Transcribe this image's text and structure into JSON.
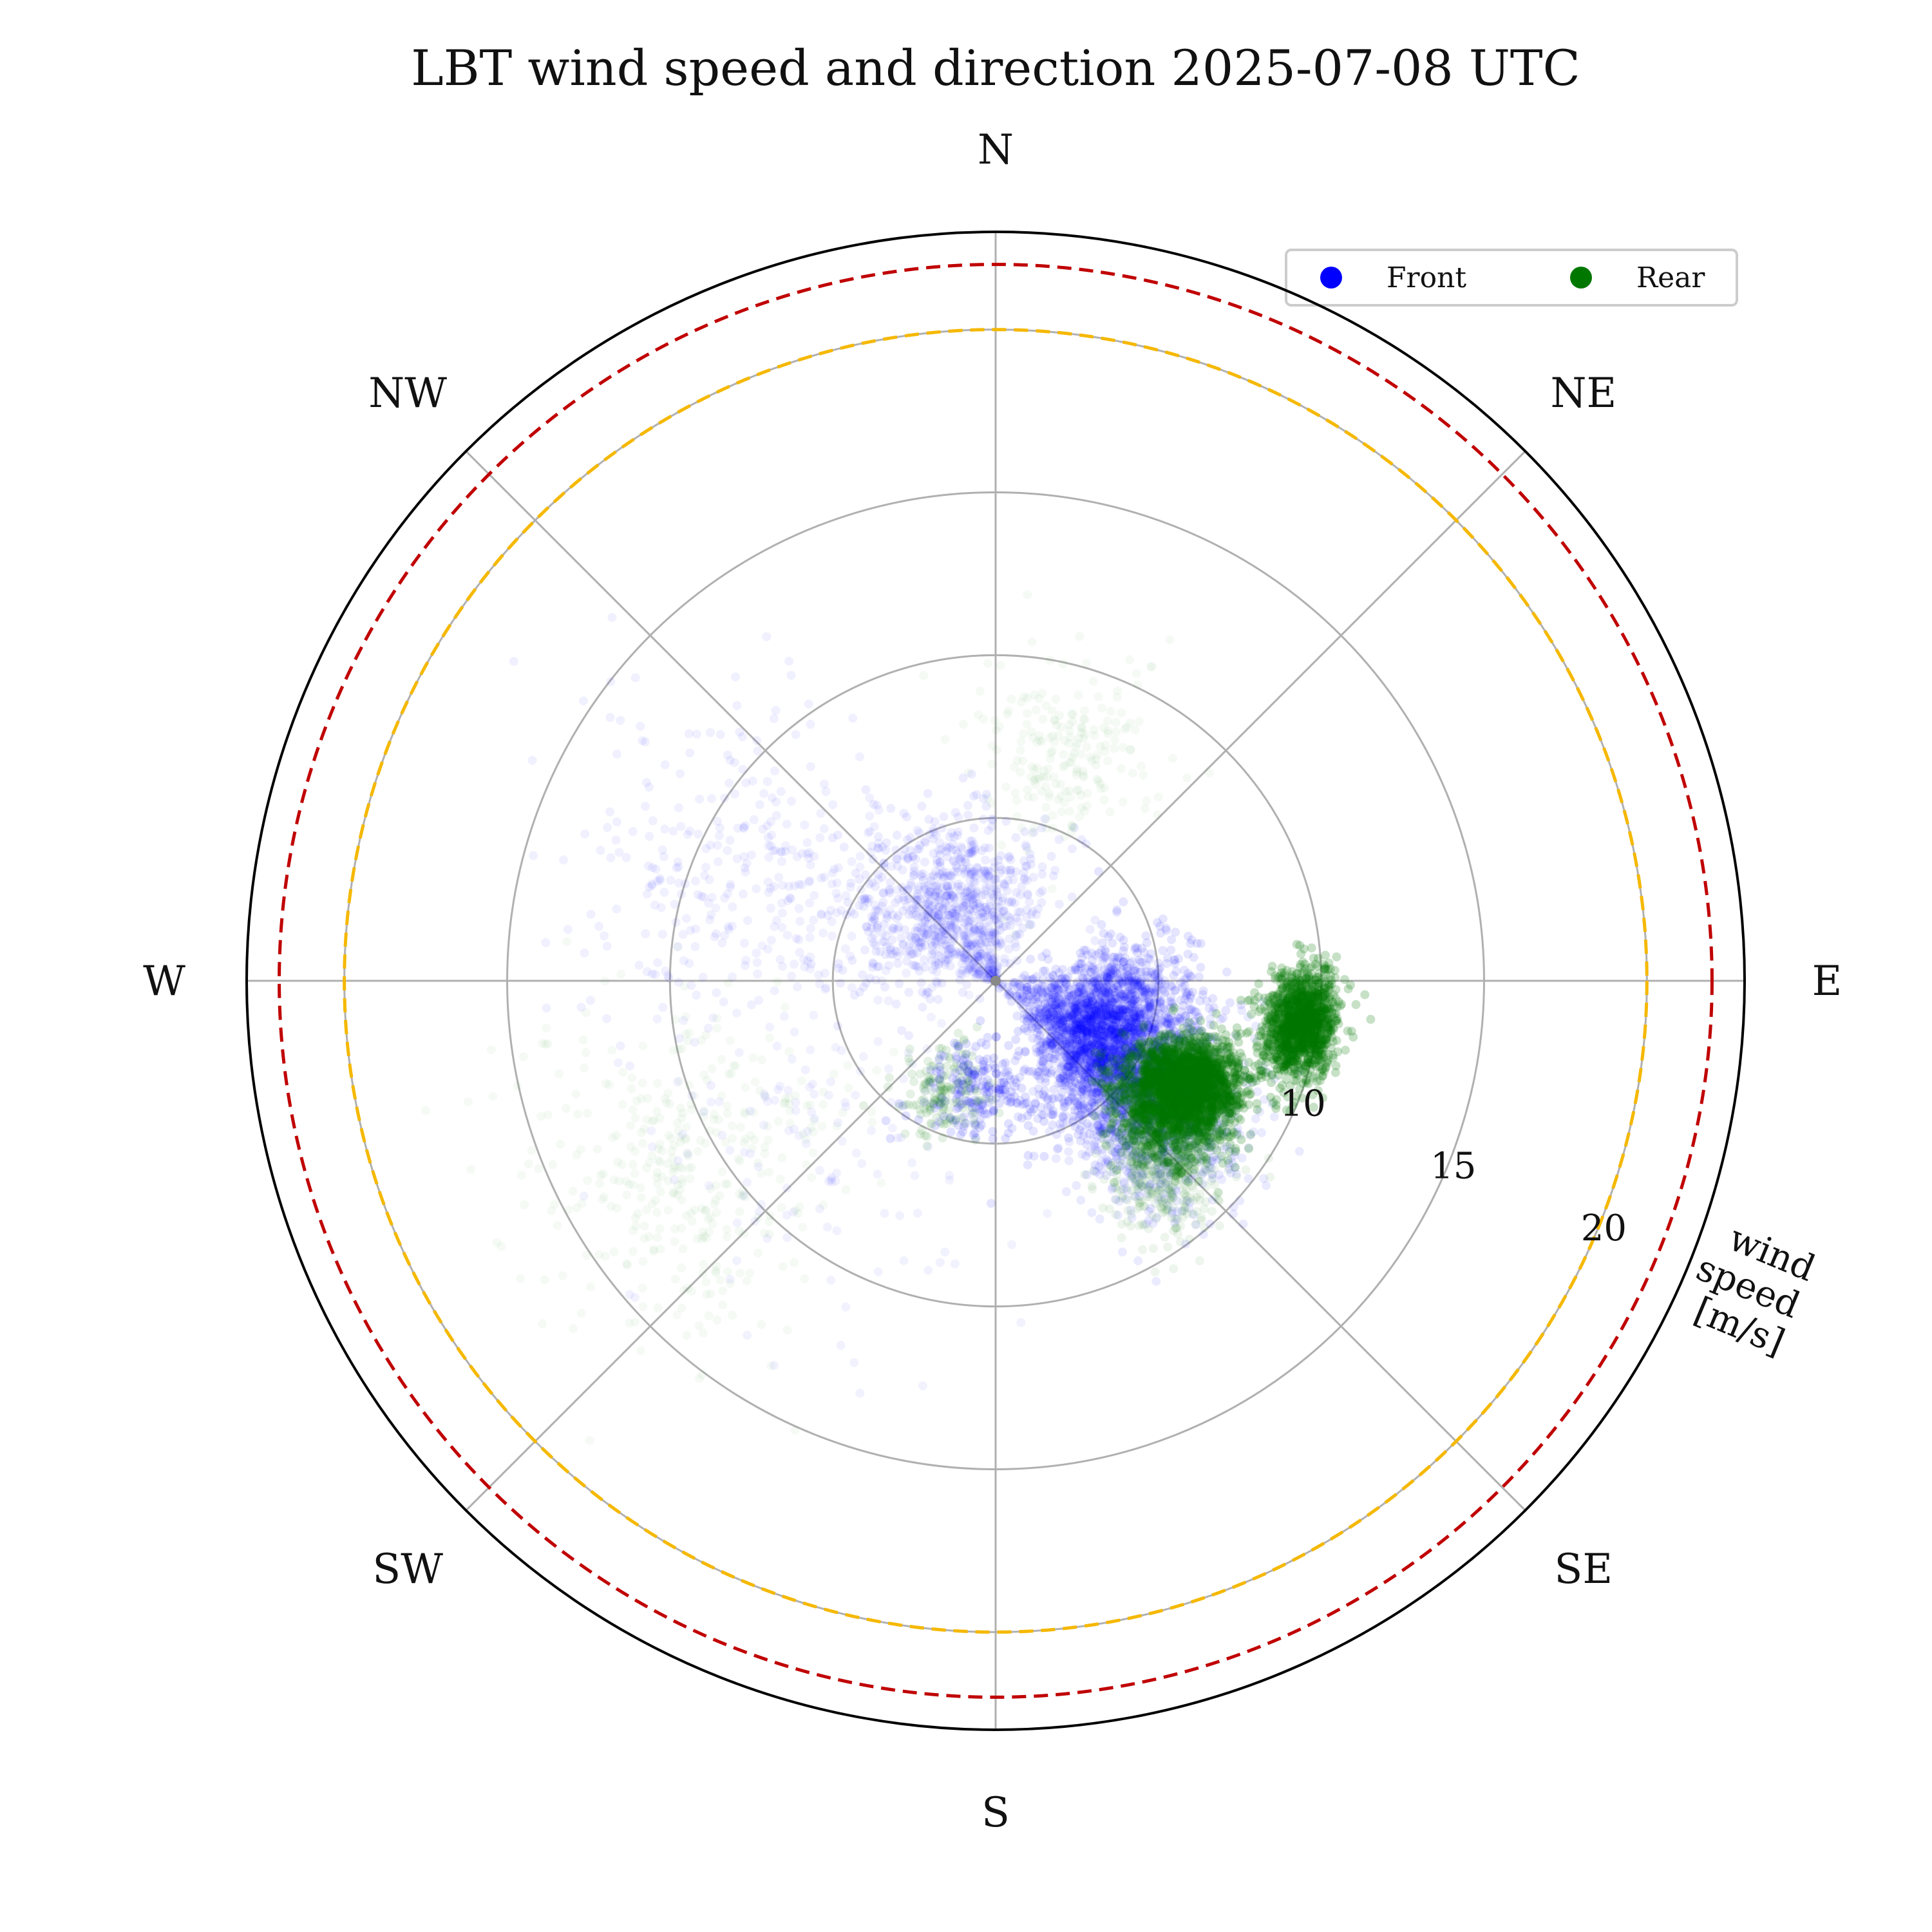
{
  "chart_data": {
    "type": "scatter",
    "subtype": "polar",
    "title": "LBT wind speed and direction 2025-07-08 UTC",
    "axis_label": "wind\nspeed\n[m/s]",
    "axis_label_lines": [
      "wind",
      "speed",
      "[m/s]"
    ],
    "direction_labels": [
      "N",
      "NE",
      "E",
      "SE",
      "S",
      "SW",
      "W",
      "NW"
    ],
    "direction_angles_deg": [
      0,
      45,
      90,
      135,
      180,
      225,
      270,
      315
    ],
    "radial_ticks": [
      5,
      10,
      15,
      20
    ],
    "radial_tick_labels": [
      "",
      "10",
      "15",
      "20"
    ],
    "radial_tick_label_direction_deg": 112.5,
    "rlim": [
      0,
      23
    ],
    "theta_zero": "N",
    "theta_direction": "clockwise",
    "grid": true,
    "reference_circles": [
      {
        "radius": 20,
        "color": "#f5b800",
        "style": "dashed"
      },
      {
        "radius": 22,
        "color": "#c00000",
        "style": "dashed"
      }
    ],
    "legend": {
      "placement": "top-right",
      "columns": 2
    },
    "series": [
      {
        "name": "Front",
        "color": "#0000ff",
        "clusters": [
          {
            "dir_deg": 116,
            "speed": 4.0,
            "dir_sd": 18,
            "speed_sd": 1.3,
            "n": 2600,
            "alpha": 0.1
          },
          {
            "dir_deg": 130,
            "speed": 6.5,
            "dir_sd": 12,
            "speed_sd": 1.4,
            "n": 900,
            "alpha": 0.08
          },
          {
            "dir_deg": 330,
            "speed": 2.8,
            "dir_sd": 30,
            "speed_sd": 1.4,
            "n": 900,
            "alpha": 0.07
          },
          {
            "dir_deg": 292,
            "speed": 8.5,
            "dir_sd": 16,
            "speed_sd": 2.8,
            "n": 350,
            "alpha": 0.06
          },
          {
            "dir_deg": 190,
            "speed": 3.5,
            "dir_sd": 14,
            "speed_sd": 0.9,
            "n": 220,
            "alpha": 0.12
          },
          {
            "dir_deg": 230,
            "speed": 8.0,
            "dir_sd": 22,
            "speed_sd": 3.0,
            "n": 140,
            "alpha": 0.05
          }
        ]
      },
      {
        "name": "Rear",
        "color": "#007800",
        "clusters": [
          {
            "dir_deg": 98,
            "speed": 9.5,
            "dir_sd": 5,
            "speed_sd": 0.55,
            "n": 1300,
            "alpha": 0.22
          },
          {
            "dir_deg": 118,
            "speed": 6.8,
            "dir_sd": 6,
            "speed_sd": 0.8,
            "n": 1800,
            "alpha": 0.22
          },
          {
            "dir_deg": 128,
            "speed": 6.5,
            "dir_sd": 7,
            "speed_sd": 0.9,
            "n": 900,
            "alpha": 0.2
          },
          {
            "dir_deg": 140,
            "speed": 8.0,
            "dir_sd": 6,
            "speed_sd": 1.0,
            "n": 350,
            "alpha": 0.07
          },
          {
            "dir_deg": 240,
            "speed": 11.5,
            "dir_sd": 12,
            "speed_sd": 2.5,
            "n": 380,
            "alpha": 0.04
          },
          {
            "dir_deg": 18,
            "speed": 7.5,
            "dir_sd": 10,
            "speed_sd": 1.5,
            "n": 220,
            "alpha": 0.04
          },
          {
            "dir_deg": 205,
            "speed": 3.8,
            "dir_sd": 10,
            "speed_sd": 0.8,
            "n": 150,
            "alpha": 0.1
          }
        ]
      }
    ]
  }
}
